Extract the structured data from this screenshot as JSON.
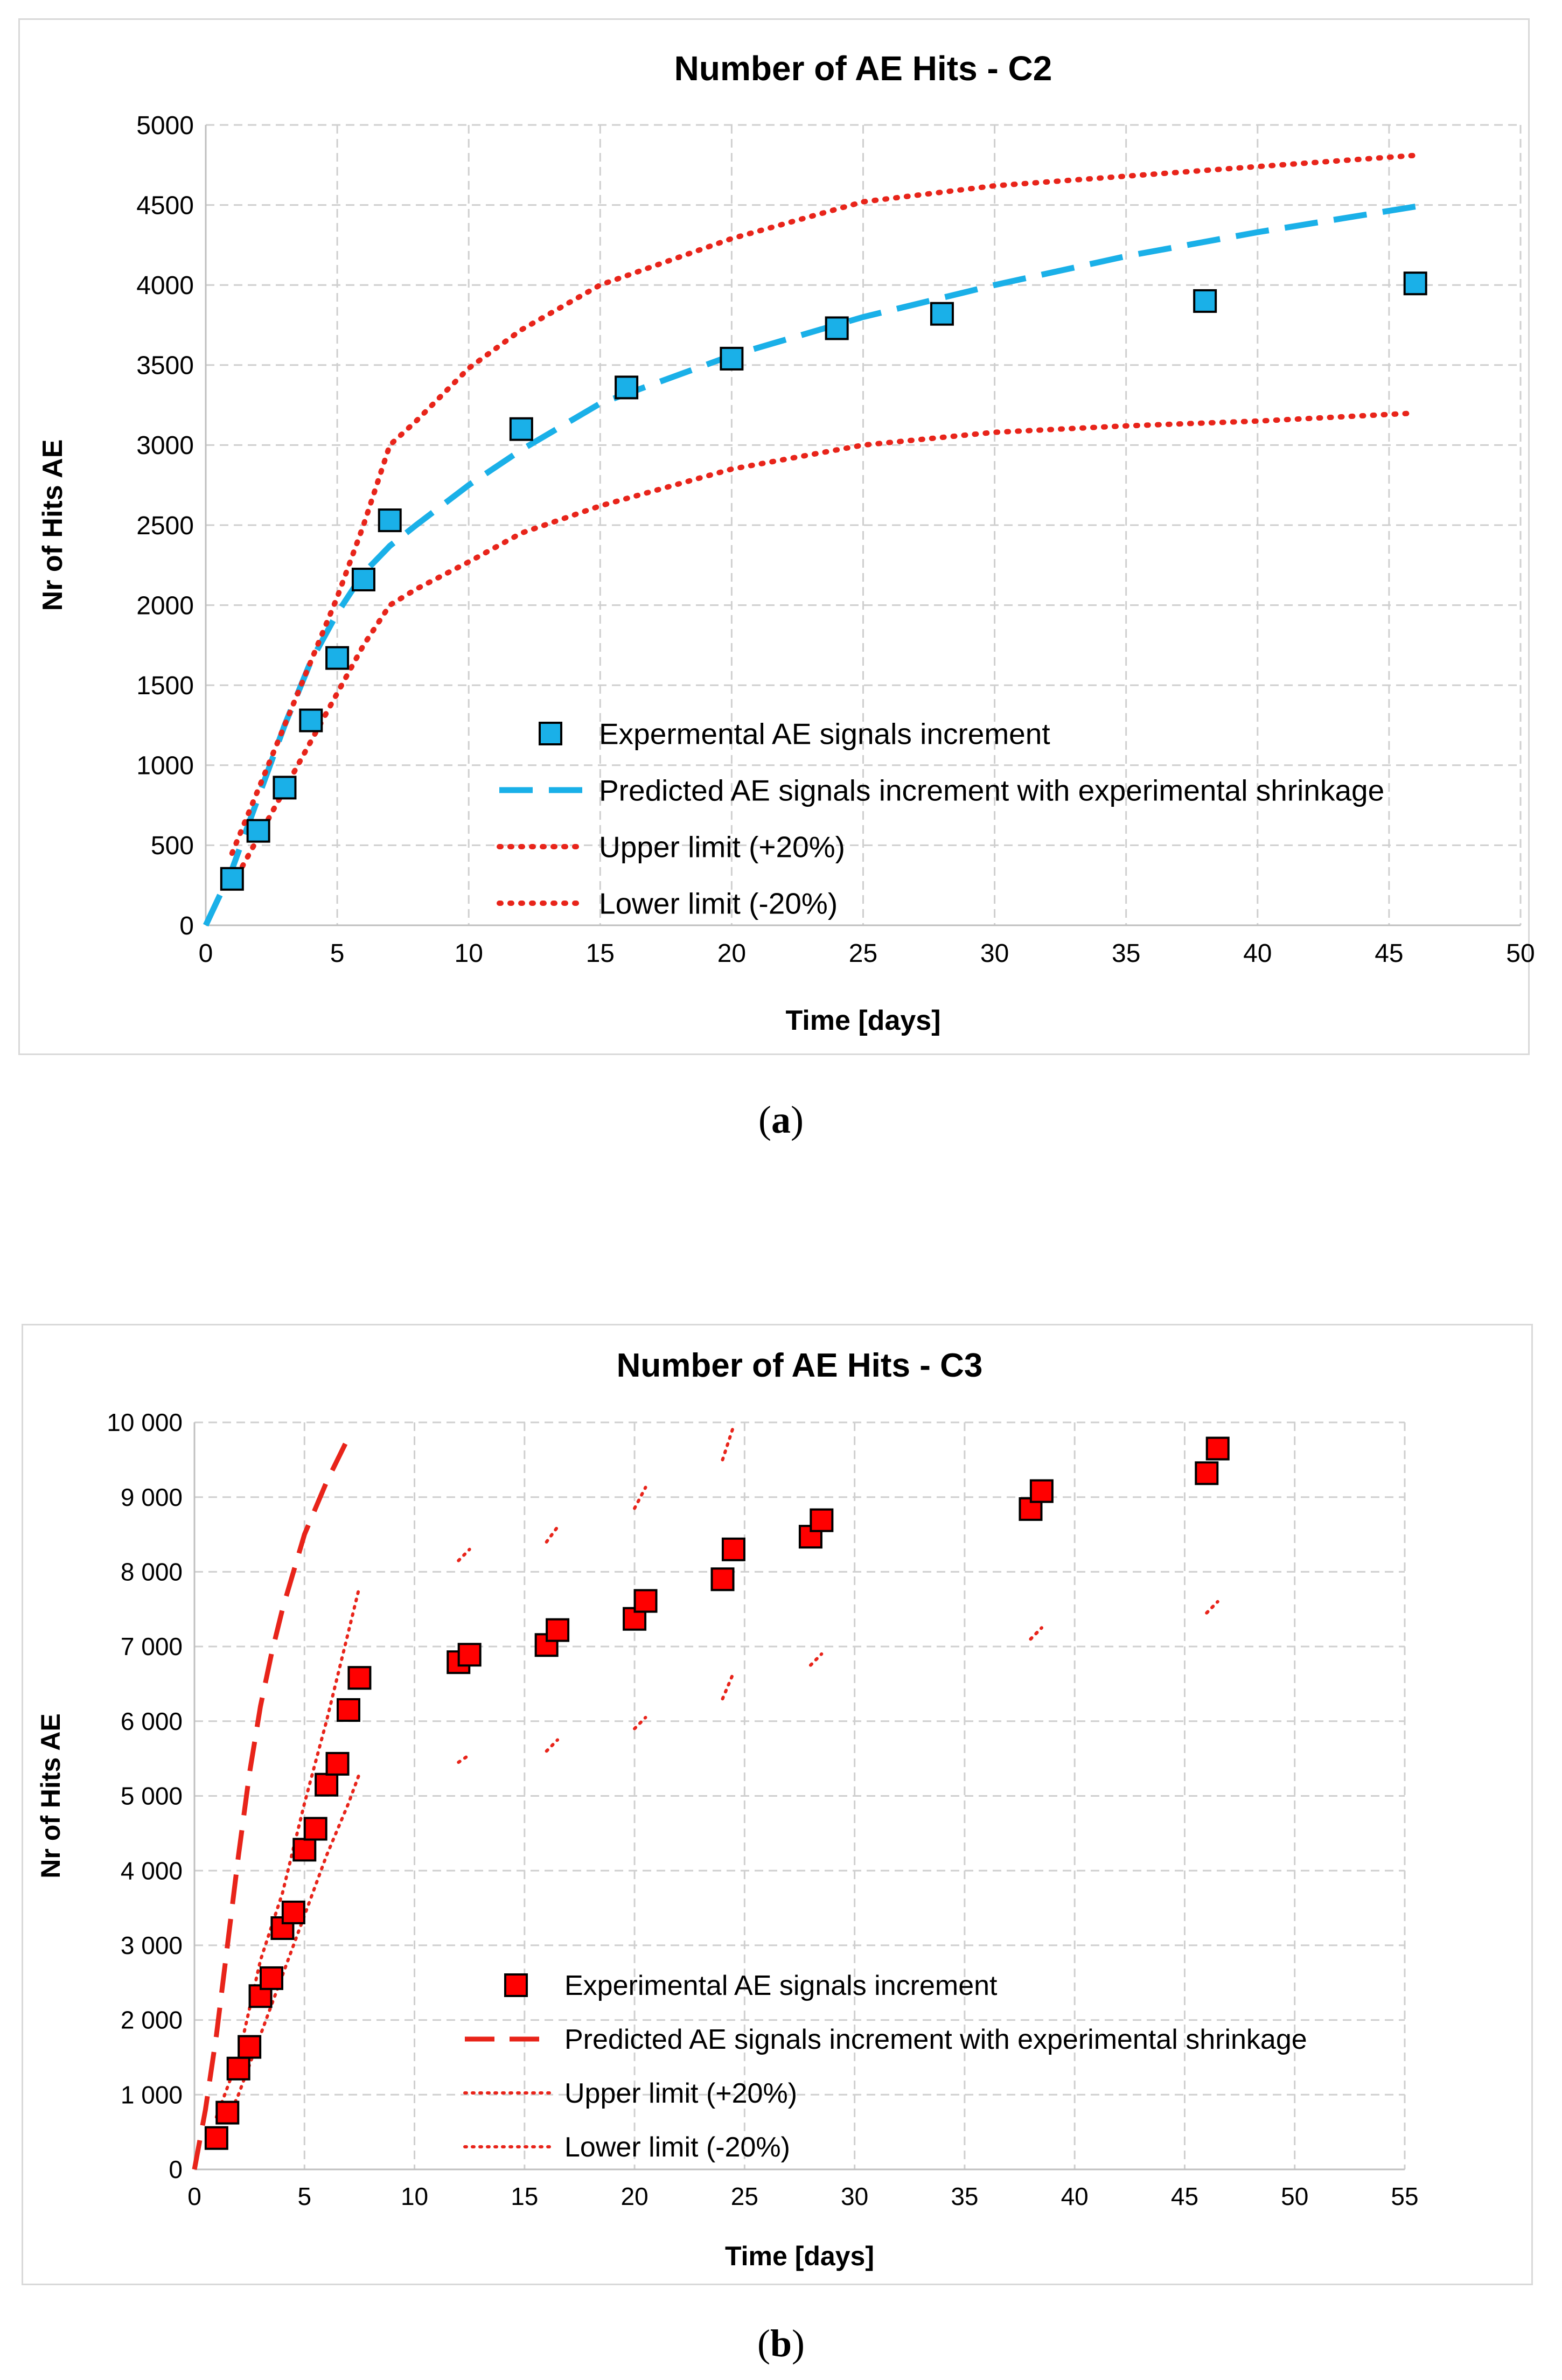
{
  "captions": {
    "a_open": "(",
    "a_letter": "a",
    "a_close": ")",
    "b_open": "(",
    "b_letter": "b",
    "b_close": ")"
  },
  "chart_data": [
    {
      "type": "scatter",
      "title": "Number of AE Hits - C2",
      "xlabel": "Time [days]",
      "ylabel": "Nr of Hits AE",
      "xlim": [
        0,
        50
      ],
      "ylim": [
        0,
        5000
      ],
      "x_ticks": [
        "0",
        "5",
        "10",
        "15",
        "20",
        "25",
        "30",
        "35",
        "40",
        "45",
        "50"
      ],
      "y_ticks": [
        "0",
        "500",
        "1000",
        "1500",
        "2000",
        "2500",
        "3000",
        "3500",
        "4000",
        "4500",
        "5000"
      ],
      "grid": true,
      "legend_position": "bottom-center",
      "colors": {
        "marker": "#1ab0e8",
        "predicted": "#1ab0e8",
        "limits": "#e8241a"
      },
      "series": [
        {
          "name": "Expermental AE signals increment",
          "kind": "marker",
          "x": [
            1,
            2,
            3,
            4,
            5,
            6,
            7,
            12,
            16,
            20,
            24,
            28,
            38,
            46
          ],
          "y": [
            290,
            590,
            860,
            1280,
            1670,
            2160,
            2530,
            3100,
            3360,
            3540,
            3730,
            3820,
            3900,
            4010
          ]
        },
        {
          "name": "Predicted AE signals increment with experimental shrinkage",
          "kind": "dashed",
          "x": [
            0,
            1,
            2,
            3,
            4,
            5,
            6,
            7,
            8,
            10,
            12,
            15,
            20,
            25,
            30,
            35,
            40,
            46
          ],
          "y": [
            0,
            350,
            800,
            1250,
            1650,
            1950,
            2200,
            2370,
            2500,
            2750,
            2970,
            3260,
            3560,
            3800,
            4000,
            4180,
            4330,
            4490
          ]
        },
        {
          "name": "Upper limit (+20%)",
          "kind": "dotted",
          "x": [
            1,
            2,
            3,
            4,
            5,
            6,
            7,
            8,
            10,
            12,
            15,
            20,
            25,
            30,
            35,
            40,
            46
          ],
          "y": [
            450,
            850,
            1250,
            1650,
            2050,
            2500,
            3000,
            3150,
            3480,
            3720,
            4000,
            4290,
            4520,
            4620,
            4680,
            4740,
            4810
          ]
        },
        {
          "name": "Lower limit (-20%)",
          "kind": "dotted",
          "x": [
            1,
            2,
            3,
            4,
            5,
            6,
            7,
            8,
            10,
            12,
            15,
            20,
            25,
            30,
            35,
            40,
            46
          ],
          "y": [
            250,
            550,
            850,
            1150,
            1450,
            1750,
            2000,
            2100,
            2270,
            2450,
            2620,
            2850,
            3000,
            3080,
            3120,
            3150,
            3200
          ]
        }
      ]
    },
    {
      "type": "scatter",
      "title": "Number of AE Hits - C3",
      "xlabel": "Time [days]",
      "ylabel": "Nr of Hits AE",
      "xlim": [
        0,
        55
      ],
      "ylim": [
        0,
        10000
      ],
      "x_ticks": [
        "0",
        "5",
        "10",
        "15",
        "20",
        "25",
        "30",
        "35",
        "40",
        "45",
        "50",
        "55"
      ],
      "y_ticks": [
        "0",
        "1 000",
        "2 000",
        "3 000",
        "4 000",
        "5 000",
        "6 000",
        "7 000",
        "8 000",
        "9 000",
        "10 000"
      ],
      "grid": true,
      "legend_position": "bottom-center",
      "colors": {
        "marker": "#ff0000",
        "predicted": "#e8241a",
        "limits": "#e8241a"
      },
      "series": [
        {
          "name": "Experimental AE signals increment",
          "kind": "marker",
          "x": [
            1,
            1.5,
            2,
            2.5,
            3,
            3.5,
            4,
            4.5,
            5,
            5.5,
            6,
            6.5,
            7,
            7.5,
            12,
            12.5,
            16,
            16.5,
            20,
            20.5,
            24,
            24.5,
            28,
            28.5,
            38,
            38.5,
            46,
            46.5
          ],
          "y": [
            420,
            760,
            1350,
            1640,
            2320,
            2560,
            3230,
            3440,
            4280,
            4560,
            5150,
            5430,
            6150,
            6580,
            6790,
            6890,
            7020,
            7220,
            7370,
            7610,
            7900,
            8300,
            8470,
            8690,
            8840,
            9080,
            9320,
            9650
          ]
        },
        {
          "name": "Predicted AE signals increment with experimental shrinkage",
          "kind": "dashed",
          "x": [
            0,
            0.5,
            1,
            1.5,
            2,
            2.5,
            3,
            3.5,
            4,
            5,
            6,
            7
          ],
          "y": [
            0,
            800,
            1800,
            3000,
            4200,
            5300,
            6200,
            6900,
            7500,
            8500,
            9200,
            9800
          ]
        },
        {
          "name": "Upper limit (+20%)",
          "kind": "dotted",
          "x": [
            1,
            2,
            3,
            4,
            5,
            6,
            7,
            7.5
          ],
          "y": [
            700,
            1500,
            2800,
            3700,
            4900,
            6000,
            7200,
            7800
          ]
        },
        {
          "name": "Lower limit (-20%)",
          "kind": "dotted",
          "x": [
            1,
            2,
            3,
            4,
            5,
            6,
            7,
            7.5
          ],
          "y": [
            350,
            1000,
            1800,
            2600,
            3400,
            4200,
            4900,
            5300
          ]
        }
      ],
      "segments": [
        {
          "name": "upper-limit",
          "x": [
            12,
            12.5,
            16,
            16.5,
            20,
            20.5,
            24,
            24.5,
            38,
            38.5,
            46,
            46.5
          ],
          "y": [
            8150,
            8300,
            8400,
            8600,
            8850,
            9130,
            9500,
            9950,
            7100,
            7250,
            7450,
            7600
          ]
        },
        {
          "name": "lower-limit",
          "x": [
            12,
            12.5,
            16,
            16.5,
            20,
            20.5,
            24,
            24.5,
            28,
            28.5,
            38,
            38.5,
            46,
            46.5
          ],
          "y": [
            5450,
            5550,
            5600,
            5750,
            5900,
            6050,
            6300,
            6650,
            6750,
            6900,
            7100,
            7250,
            7450,
            7600
          ]
        }
      ]
    }
  ]
}
